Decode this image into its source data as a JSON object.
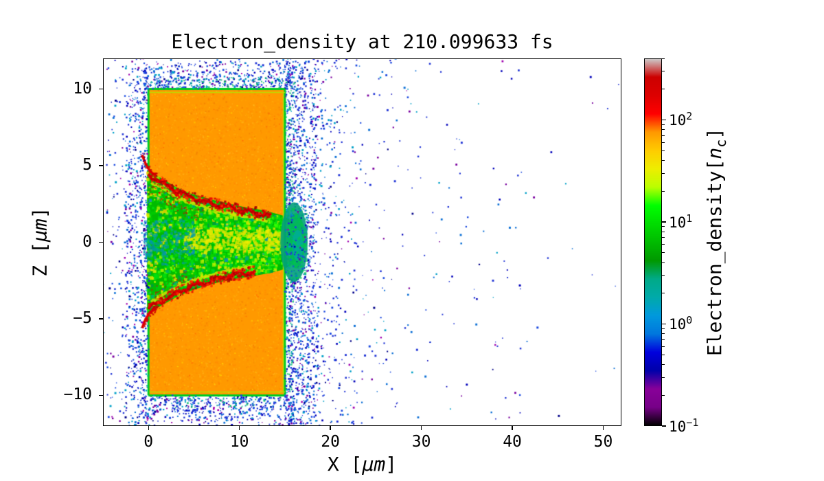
{
  "chart_data": {
    "type": "heatmap",
    "title": "Electron_density at 210.099633 fs",
    "time_fs": 210.099633,
    "xlabel": "X [μm]",
    "ylabel": "Z [μm]",
    "xlim": [
      -5,
      52
    ],
    "ylim": [
      -12,
      12
    ],
    "x_ticks": [
      0,
      10,
      20,
      30,
      40,
      50
    ],
    "x_tick_labels": [
      "0",
      "10",
      "20",
      "30",
      "40",
      "50"
    ],
    "y_ticks": [
      10,
      5,
      0,
      -5,
      -10
    ],
    "y_tick_labels": [
      "10",
      "5",
      "0",
      "−5",
      "−10"
    ],
    "grid": false,
    "legend": "none",
    "colorbar": {
      "label": "Electron_density[n_c]",
      "scale": "log",
      "vmin": 0.1,
      "vmax": 400,
      "colormap": "nipy_spectral",
      "position": "right",
      "ticks": [
        {
          "value": 100,
          "base": "10",
          "exp": "2"
        },
        {
          "value": 10,
          "base": "10",
          "exp": "1"
        },
        {
          "value": 1,
          "base": "10",
          "exp": "0"
        },
        {
          "value": 0.1,
          "base": "10",
          "exp": "−1"
        }
      ],
      "colormap_stops": [
        [
          0.0,
          "#000000"
        ],
        [
          0.05,
          "#770088"
        ],
        [
          0.1,
          "#880099"
        ],
        [
          0.15,
          "#0000aa"
        ],
        [
          0.2,
          "#0000dd"
        ],
        [
          0.25,
          "#0077dd"
        ],
        [
          0.3,
          "#0099dd"
        ],
        [
          0.35,
          "#00aaaa"
        ],
        [
          0.4,
          "#00aa88"
        ],
        [
          0.45,
          "#009900"
        ],
        [
          0.5,
          "#00bb00"
        ],
        [
          0.55,
          "#00dd00"
        ],
        [
          0.6,
          "#00ff00"
        ],
        [
          0.65,
          "#bbff00"
        ],
        [
          0.7,
          "#eeee00"
        ],
        [
          0.75,
          "#ffcc00"
        ],
        [
          0.8,
          "#ff9900"
        ],
        [
          0.85,
          "#ff0000"
        ],
        [
          0.9,
          "#dd0000"
        ],
        [
          0.95,
          "#cc0000"
        ],
        [
          1.0,
          "#cccccc"
        ]
      ]
    },
    "features": {
      "target_slab": {
        "x_range": [
          0,
          15
        ],
        "z_range": [
          -10,
          10
        ],
        "density_nc": 100
      },
      "channel": {
        "description": "laser-bored cone opening to the left, carved into the slab",
        "mouth_z_range": [
          -4.65,
          4.7
        ],
        "tip": [
          16.9,
          0
        ],
        "upper_boundary": [
          [
            -0.15,
            4.7
          ],
          [
            1.5,
            4.15
          ],
          [
            3.0,
            3.6
          ],
          [
            4.5,
            3.2
          ],
          [
            6.0,
            2.95
          ],
          [
            7.5,
            2.7
          ],
          [
            9.0,
            2.5
          ],
          [
            10.5,
            2.3
          ],
          [
            12.0,
            2.15
          ],
          [
            13.5,
            1.95
          ],
          [
            15.0,
            1.7
          ],
          [
            16.2,
            1.1
          ]
        ],
        "lower_boundary": [
          [
            -0.15,
            -4.65
          ],
          [
            1.5,
            -4.1
          ],
          [
            3.0,
            -3.6
          ],
          [
            4.5,
            -3.2
          ],
          [
            6.0,
            -2.9
          ],
          [
            7.5,
            -2.65
          ],
          [
            9.0,
            -2.45
          ],
          [
            10.5,
            -2.3
          ],
          [
            12.0,
            -2.15
          ],
          [
            13.5,
            -2.0
          ],
          [
            15.0,
            -1.75
          ],
          [
            16.2,
            -1.2
          ]
        ],
        "interior_density_nc": 8,
        "upper_filament": {
          "x_range": [
            0,
            13.5
          ],
          "density_nc": 300
        },
        "lower_filament": {
          "x_range": [
            0,
            11.8
          ],
          "density_nc": 300
        }
      },
      "electron_halo": {
        "x_extent": [
          -5,
          42
        ],
        "density_nc": 0.5
      }
    }
  },
  "labels": {
    "xlabel": {
      "prefix": "X [",
      "math": "μm",
      "suffix": "]"
    },
    "ylabel": {
      "prefix": "Z [",
      "math": "μm",
      "suffix": "]"
    },
    "cbar": {
      "prefix": "Electron_density[",
      "math": "n",
      "sub": "c",
      "suffix": "]"
    }
  },
  "palette": {
    "background": "#ffffff",
    "slab": "#ff9900",
    "slab_edge": "#00cc22",
    "channel_fill": "#00bb00",
    "filament": "#e60000",
    "yellow_band": "#dde600",
    "tip_cap": "#00a07a",
    "halo_dots": [
      "#2135d6",
      "#1a49e0",
      "#0000bb",
      "#0b6fd6",
      "#00a0c8",
      "#7a00a0",
      "#a000b0",
      "#000088"
    ]
  }
}
